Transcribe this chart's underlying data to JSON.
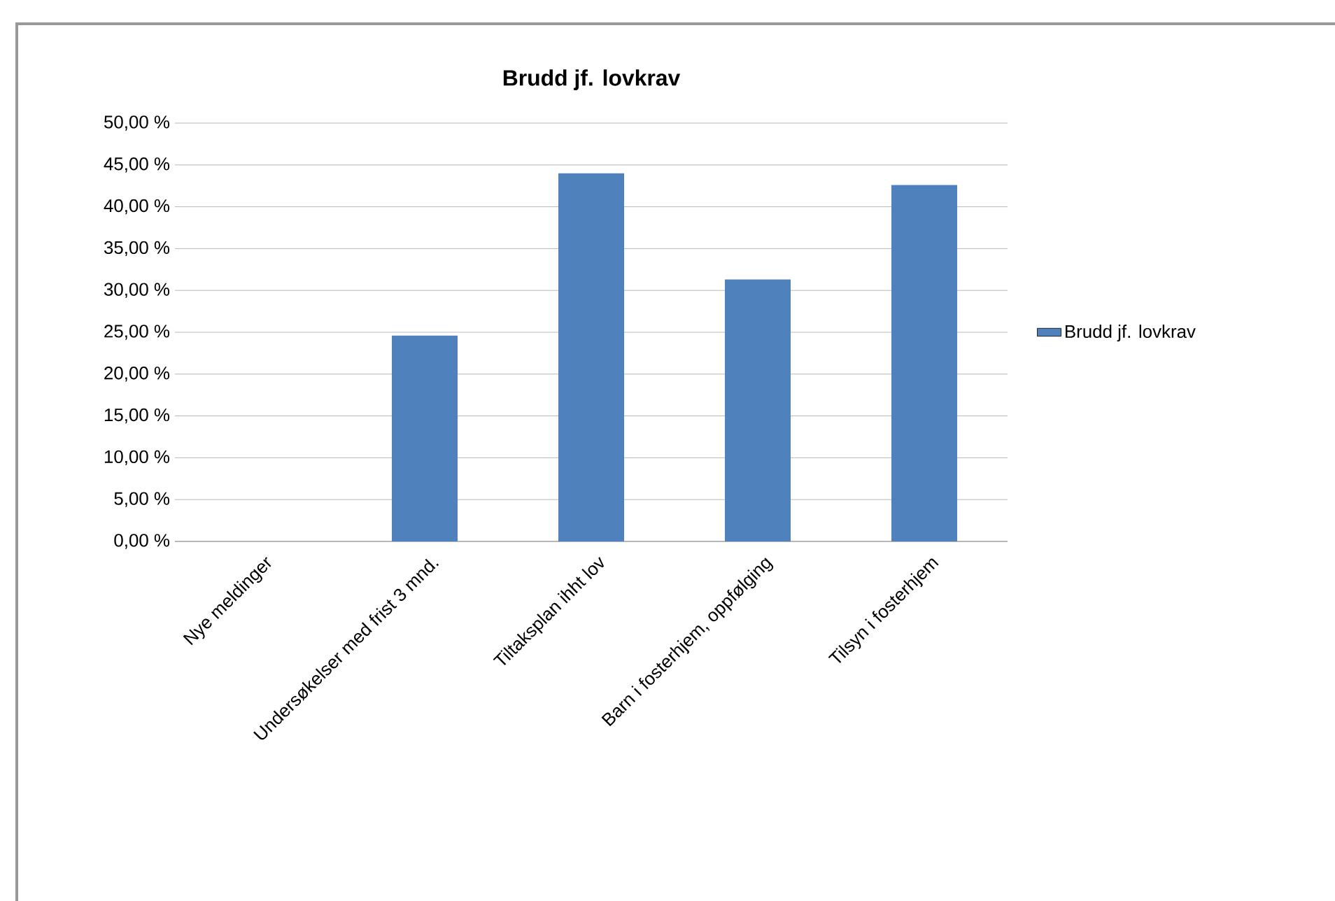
{
  "chart_data": {
    "type": "bar",
    "title": "Brudd jf. lovkrav",
    "categories": [
      "Nye meldinger",
      "Undersøkelser med frist 3 mnd.",
      "Tiltaksplan ihht lov",
      "Barn i fosterhjem, oppfølging",
      "Tilsyn i fosterhjem"
    ],
    "series": [
      {
        "name": "Brudd jf. lovkrav",
        "color": "#4f81bd",
        "values": [
          0,
          24.6,
          44.0,
          31.3,
          42.6
        ]
      }
    ],
    "ylim": [
      0,
      50
    ],
    "yticks": [
      {
        "value": 0,
        "label": "0,00 %"
      },
      {
        "value": 5,
        "label": "5,00 %"
      },
      {
        "value": 10,
        "label": "10,00 %"
      },
      {
        "value": 15,
        "label": "15,00 %"
      },
      {
        "value": 20,
        "label": "20,00 %"
      },
      {
        "value": 25,
        "label": "25,00 %"
      },
      {
        "value": 30,
        "label": "30,00 %"
      },
      {
        "value": 35,
        "label": "35,00 %"
      },
      {
        "value": 40,
        "label": "40,00 %"
      },
      {
        "value": 45,
        "label": "45,00 %"
      },
      {
        "value": 50,
        "label": "50,00 %"
      }
    ],
    "grid": "y",
    "legend": "right"
  }
}
